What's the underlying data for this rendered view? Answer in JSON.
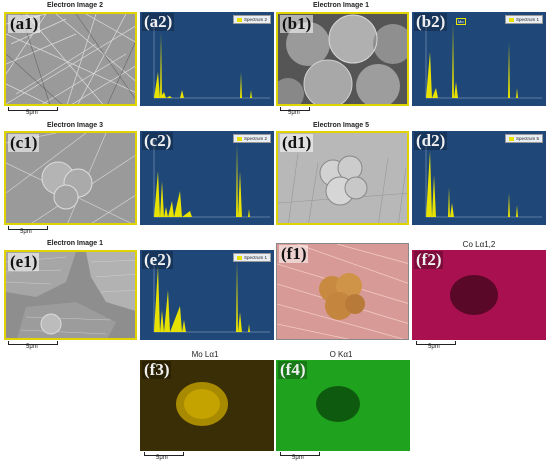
{
  "captions": {
    "a1": "Electron Image 2",
    "b1": "Electron Image 1",
    "c1": "Electron Image 3",
    "d1": "Electron Image 5",
    "e1": "Electron Image 1",
    "f2": "Co Lα1,2",
    "f3": "Mo Lα1",
    "f4": "O Kα1"
  },
  "labels": {
    "a1": "(a1)",
    "a2": "(a2)",
    "b1": "(b1)",
    "b2": "(b2)",
    "c1": "(c1)",
    "c2": "(c2)",
    "d1": "(d1)",
    "d2": "(d2)",
    "e1": "(e1)",
    "e2": "(e2)",
    "f1": "(f1)",
    "f2": "(f2)",
    "f3": "(f3)",
    "f4": "(f4)"
  },
  "scale": "5μm",
  "legends": {
    "a2": "Spectrum 2",
    "b2": "Spectrum 1",
    "c2": "Spectrum 2",
    "d2": "Spectrum 5",
    "e2": "Spectrum 1"
  },
  "colors": {
    "sem_border": "#e0d400",
    "spectrum_bg": "#1f4778",
    "spectrum_fill": "#e8e200",
    "map_co": "#b0105a",
    "map_mo": "#a88a00",
    "map_o": "#1fa31f"
  }
}
